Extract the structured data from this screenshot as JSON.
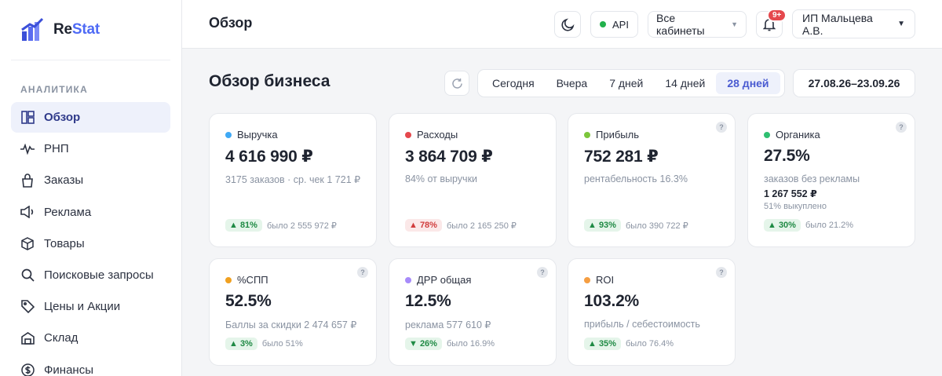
{
  "brand": {
    "part1": "Re",
    "part2": "Stat"
  },
  "sidebar": {
    "section": "АНАЛИТИКА",
    "items": [
      {
        "label": "Обзор",
        "icon": "dashboard-icon"
      },
      {
        "label": "РНП",
        "icon": "pulse-icon"
      },
      {
        "label": "Заказы",
        "icon": "bag-icon"
      },
      {
        "label": "Реклама",
        "icon": "megaphone-icon"
      },
      {
        "label": "Товары",
        "icon": "box-icon"
      },
      {
        "label": "Поисковые запросы",
        "icon": "search-icon"
      },
      {
        "label": "Цены и Акции",
        "icon": "tag-icon"
      },
      {
        "label": "Склад",
        "icon": "warehouse-icon"
      },
      {
        "label": "Финансы",
        "icon": "dollar-icon"
      }
    ]
  },
  "topbar": {
    "title": "Обзор",
    "api_label": "API",
    "cabinets": "Все кабинеты",
    "notif_badge": "9+",
    "user": "ИП Мальцева А.В."
  },
  "main": {
    "title": "Обзор бизнеса",
    "periods": [
      "Сегодня",
      "Вчера",
      "7 дней",
      "14 дней",
      "28 дней"
    ],
    "active_period": "28 дней",
    "date_range": "27.08.26–23.09.26"
  },
  "colors": {
    "accent": "#4f6bf5",
    "up": "#1f8a44",
    "down": "#d13d3d"
  },
  "cards": [
    {
      "title": "Выручка",
      "dot": "#3fa9f5",
      "value": "4 616 990 ₽",
      "sub": "3175 заказов · ср. чек 1 721 ₽",
      "chip": "▲ 81%",
      "trend": "down",
      "was": "было 2 555 972 ₽",
      "help": false
    },
    {
      "title": "Расходы",
      "dot": "#e5484d",
      "value": "3 864 709 ₽",
      "sub": "84% от выручки",
      "chip": "▲ 78%",
      "trend": "down",
      "was": "было 2 165 250 ₽",
      "help": false
    },
    {
      "title": "Прибыль",
      "dot": "#7cc63b",
      "value": "752 281 ₽",
      "sub": "рентабельность 16.3%",
      "chip": "▲ 93%",
      "trend": "up",
      "was": "было 390 722 ₽",
      "help": true
    },
    {
      "title": "Органика",
      "dot": "#2fbf71",
      "value": "27.5%",
      "sub": "заказов без рекламы",
      "sub2": "1 267 552 ₽",
      "sub3": "51% выкуплено",
      "chip": "▲ 30%",
      "trend": "up",
      "was": "было 21.2%",
      "help": true
    },
    {
      "title": "%СПП",
      "dot": "#f0a020",
      "value": "52.5%",
      "sub": "Баллы за скидки 2 474 657 ₽",
      "chip": "▲ 3%",
      "trend": "up",
      "was": "было 51%",
      "help": true
    },
    {
      "title": "ДРР общая",
      "dot": "#a78bfa",
      "value": "12.5%",
      "sub": "реклама 577 610 ₽",
      "chip": "▼ 26%",
      "trend": "up",
      "was": "было 16.9%",
      "help": true
    },
    {
      "title": "ROI",
      "dot": "#f59e42",
      "value": "103.2%",
      "sub": "прибыль / себестоимость",
      "chip": "▲ 35%",
      "trend": "up",
      "was": "было 76.4%",
      "help": true
    }
  ]
}
